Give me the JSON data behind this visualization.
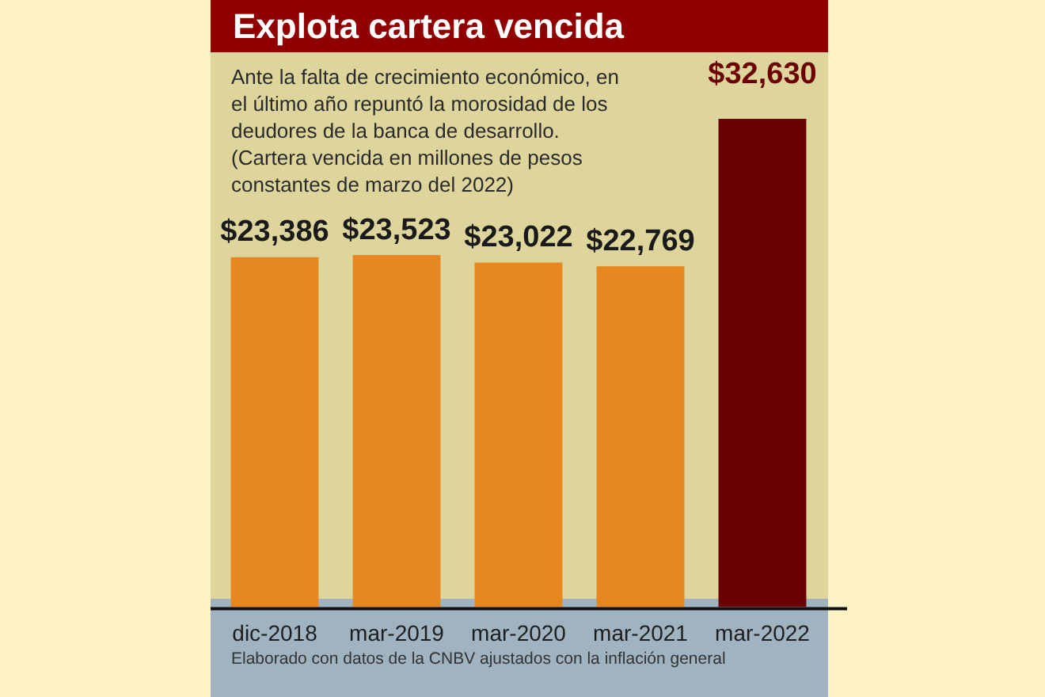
{
  "chart_data": {
    "type": "bar",
    "title": "Explota cartera vencida",
    "subtitle": "Ante la falta de crecimiento económico, en el último año repuntó la morosidad de los deudores de la banca de desarrollo. (Cartera vencida en millones de pesos constantes de marzo del 2022)",
    "categories": [
      "dic-2018",
      "mar-2019",
      "mar-2020",
      "mar-2021",
      "mar-2022"
    ],
    "values": [
      23386,
      23523,
      23022,
      22769,
      32630
    ],
    "value_labels": [
      "$23,386",
      "$23,523",
      "$23,022",
      "$22,769",
      "$32,630"
    ],
    "colors": [
      "#e6881f",
      "#e6881f",
      "#e6881f",
      "#e6881f",
      "#6b0000"
    ],
    "annotations": [
      "Elaborado con datos de la CNBV ajustados con la inflación general"
    ],
    "grid": false,
    "legend": false,
    "tick_labels": "x"
  }
}
